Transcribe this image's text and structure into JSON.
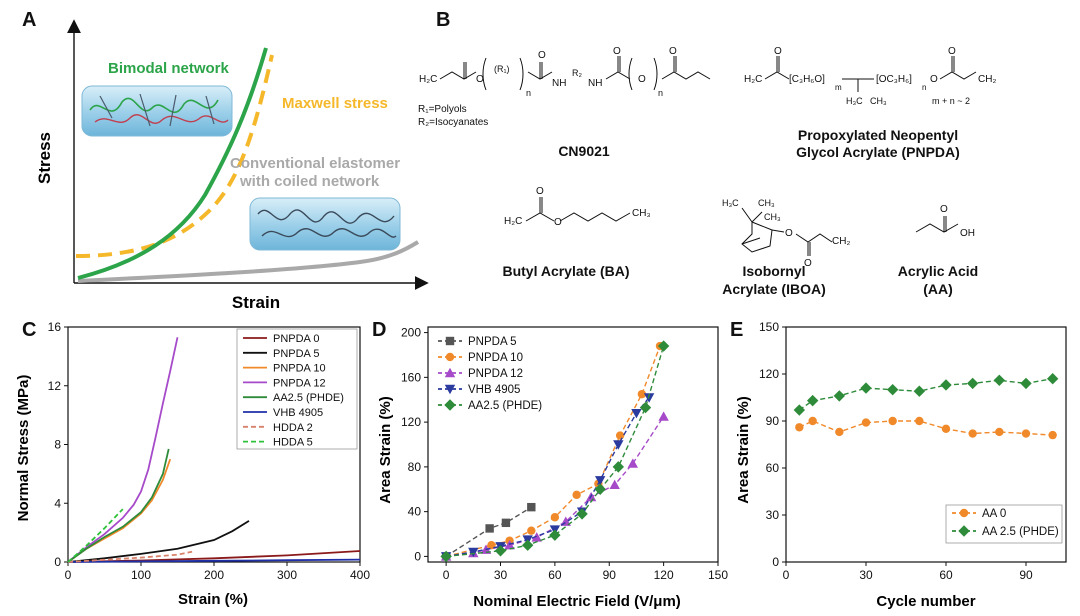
{
  "panel_labels": {
    "a": "A",
    "b": "B",
    "c": "C",
    "d": "D",
    "e": "E"
  },
  "panel_a": {
    "xlabel": "Strain",
    "ylabel": "Stress",
    "bimodal_label": "Bimodal network",
    "maxwell_label": "Maxwell stress",
    "conventional_label_1": "Conventional elastomer",
    "conventional_label_2": "with coiled network",
    "colors": {
      "bimodal": "#2ca44a",
      "maxwell": "#f5b82a",
      "conventional": "#a9a9a9"
    }
  },
  "panel_b": {
    "cn9021": {
      "name": "CN9021",
      "r1": "R₁=Polyols",
      "r2": "R₂=Isocyanates",
      "ch2": "H₂C",
      "o": "O",
      "n": "n",
      "nh": "NH",
      "r1s": "(R₁)",
      "r2s": "R₂"
    },
    "pnpda": {
      "name1": "Propoxylated Neopentyl",
      "name2": "Glycol Acrylate (PNPDA)",
      "rep": "[C₃H₆O]",
      "rep2": "[OC₃H₆]",
      "sub_m": "m",
      "sub_n": "n",
      "mn": "m + n ~ 2",
      "h3c": "H₃C",
      "ch3": "CH₃"
    },
    "ba": {
      "name": "Butyl Acrylate (BA)",
      "ch3": "CH₃",
      "ch2": "CH₂"
    },
    "iboa": {
      "name1": "Isobornyl",
      "name2": "Acrylate (IBOA)",
      "h3c": "H₃C",
      "ch3": "CH₃",
      "ch2": "CH₂"
    },
    "aa": {
      "name1": "Acrylic Acid",
      "name2": "(AA)",
      "oh": "OH"
    }
  },
  "chart_data": [
    {
      "id": "C",
      "type": "line",
      "xlabel": "Strain (%)",
      "ylabel": "Normal Stress (MPa)",
      "xlim": [
        0,
        400
      ],
      "ylim": [
        0,
        16
      ],
      "xticks": [
        0,
        100,
        200,
        300,
        400
      ],
      "yticks": [
        0,
        4,
        8,
        12,
        16
      ],
      "legend_position": "top-right",
      "series": [
        {
          "name": "PNPDA 0",
          "color": "#8b1a1a",
          "dash": "",
          "x": [
            0,
            100,
            200,
            300,
            400
          ],
          "y": [
            0,
            0.1,
            0.25,
            0.45,
            0.75
          ]
        },
        {
          "name": "PNPDA 5",
          "color": "#111111",
          "dash": "",
          "x": [
            0,
            50,
            100,
            150,
            200,
            225,
            248
          ],
          "y": [
            0,
            0.25,
            0.55,
            0.9,
            1.5,
            2.1,
            2.8
          ]
        },
        {
          "name": "PNPDA 10",
          "color": "#f0892a",
          "dash": "",
          "x": [
            0,
            25,
            50,
            75,
            100,
            115,
            130,
            140
          ],
          "y": [
            0,
            0.9,
            1.6,
            2.3,
            3.3,
            4.2,
            5.6,
            7.0
          ]
        },
        {
          "name": "PNPDA 12",
          "color": "#a64ac9",
          "dash": "",
          "x": [
            0,
            25,
            50,
            75,
            90,
            100,
            110,
            120,
            130,
            140,
            150
          ],
          "y": [
            0,
            1.0,
            1.9,
            3.0,
            3.9,
            4.8,
            6.3,
            8.5,
            10.8,
            13.0,
            15.3
          ]
        },
        {
          "name": "AA2.5 (PHDE)",
          "color": "#2e8b3a",
          "dash": "",
          "x": [
            0,
            25,
            50,
            75,
            100,
            115,
            130,
            138
          ],
          "y": [
            0,
            0.9,
            1.7,
            2.4,
            3.4,
            4.4,
            6.0,
            7.7
          ]
        },
        {
          "name": "VHB 4905",
          "color": "#1f2fa8",
          "dash": "",
          "x": [
            0,
            100,
            200,
            300,
            400
          ],
          "y": [
            0,
            0.04,
            0.08,
            0.12,
            0.16
          ]
        },
        {
          "name": "HDDA 2",
          "color": "#d9826b",
          "dash": "5,3",
          "x": [
            0,
            50,
            100,
            150,
            170
          ],
          "y": [
            0,
            0.15,
            0.3,
            0.5,
            0.7
          ]
        },
        {
          "name": "HDDA 5",
          "color": "#2fc13a",
          "dash": "5,3",
          "x": [
            0,
            25,
            50,
            75
          ],
          "y": [
            0,
            1.1,
            2.3,
            3.6
          ]
        }
      ]
    },
    {
      "id": "D",
      "type": "line",
      "xlabel": "Nominal Electric Field (V/μm)",
      "ylabel": "Area Strain (%)",
      "xlim": [
        -10,
        150
      ],
      "ylim": [
        -5,
        205
      ],
      "xticks": [
        0,
        30,
        60,
        90,
        120,
        150
      ],
      "yticks": [
        0,
        40,
        80,
        120,
        160,
        200
      ],
      "legend_position": "top-left",
      "series": [
        {
          "name": "PNPDA 5",
          "color": "#555555",
          "marker": "square",
          "x": [
            0,
            24,
            33,
            47
          ],
          "y": [
            0,
            25,
            30,
            44
          ]
        },
        {
          "name": "PNPDA 10",
          "color": "#f0892a",
          "marker": "circle",
          "x": [
            0,
            25,
            35,
            47,
            60,
            72,
            84,
            96,
            108,
            118
          ],
          "y": [
            0,
            10,
            14,
            23,
            35,
            55,
            65,
            108,
            145,
            188
          ]
        },
        {
          "name": "PNPDA 12",
          "color": "#a64ac9",
          "marker": "triangle",
          "x": [
            0,
            15,
            22,
            35,
            50,
            66,
            80,
            93,
            103,
            120
          ],
          "y": [
            0,
            3,
            6,
            10,
            17,
            31,
            53,
            64,
            83,
            125
          ]
        },
        {
          "name": "VHB 4905",
          "color": "#2a3a9e",
          "marker": "triangle-down",
          "x": [
            0,
            15,
            30,
            45,
            60,
            75,
            85,
            95,
            105,
            112
          ],
          "y": [
            0,
            4,
            9,
            15,
            24,
            40,
            68,
            100,
            128,
            142
          ]
        },
        {
          "name": "AA2.5 (PHDE)",
          "color": "#2e8b3a",
          "marker": "diamond",
          "x": [
            0,
            30,
            45,
            60,
            75,
            85,
            95,
            110,
            120
          ],
          "y": [
            0,
            5,
            10,
            19,
            38,
            60,
            80,
            133,
            188
          ]
        }
      ]
    },
    {
      "id": "E",
      "type": "line",
      "xlabel": "Cycle number",
      "ylabel": "Area Strain (%)",
      "xlim": [
        0,
        105
      ],
      "ylim": [
        0,
        150
      ],
      "xticks": [
        0,
        30,
        60,
        90
      ],
      "yticks": [
        0,
        30,
        60,
        90,
        120,
        150
      ],
      "legend_position": "bottom-right",
      "series": [
        {
          "name": "AA 0",
          "color": "#f0892a",
          "marker": "circle",
          "x": [
            5,
            10,
            20,
            30,
            40,
            50,
            60,
            70,
            80,
            90,
            100
          ],
          "y": [
            86,
            90,
            83,
            89,
            90,
            90,
            85,
            82,
            83,
            82,
            81
          ]
        },
        {
          "name": "AA 2.5 (PHDE)",
          "color": "#2e8b3a",
          "marker": "diamond",
          "x": [
            5,
            10,
            20,
            30,
            40,
            50,
            60,
            70,
            80,
            90,
            100
          ],
          "y": [
            97,
            103,
            106,
            111,
            110,
            109,
            113,
            114,
            116,
            114,
            117
          ]
        }
      ]
    }
  ]
}
